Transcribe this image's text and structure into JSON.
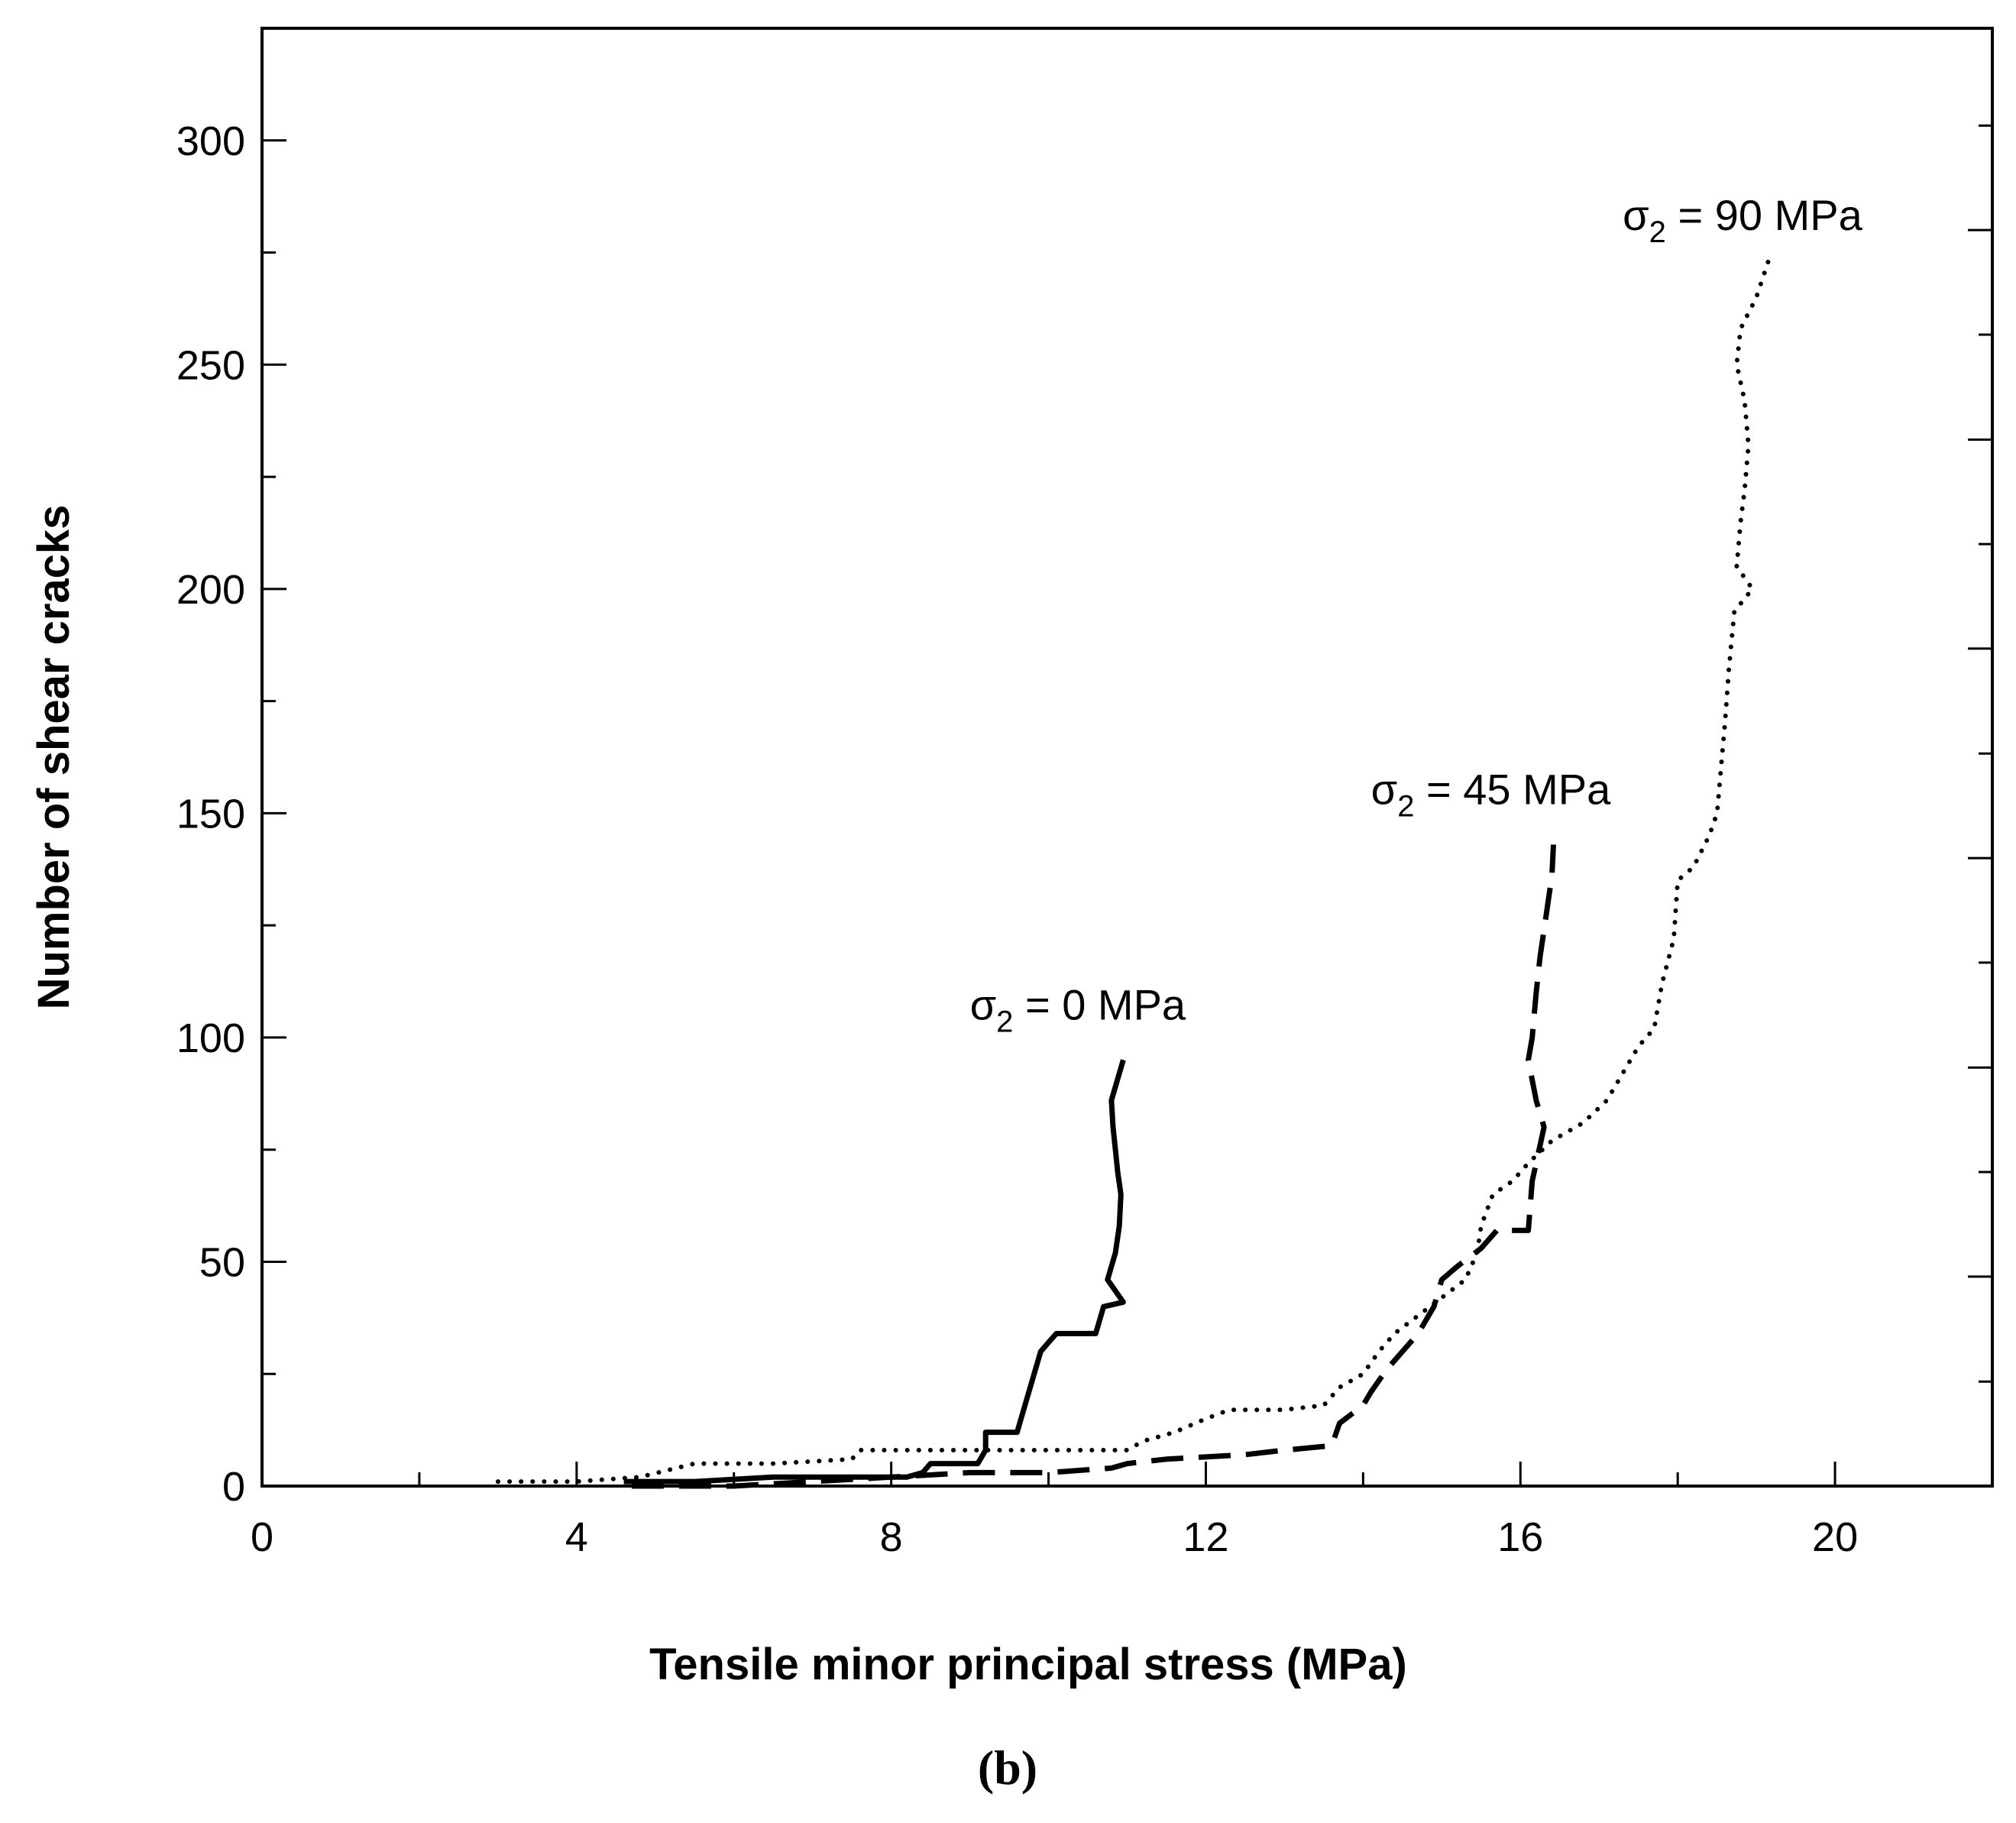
{
  "chart_data": {
    "type": "line",
    "xlabel": "Tensile minor principal stress (MPa)",
    "ylabel": "Number of shear cracks",
    "xlim": [
      0,
      22
    ],
    "ylim": [
      0,
      325
    ],
    "x_ticks": [
      0,
      4,
      8,
      12,
      16,
      20
    ],
    "x_minor_ticks": [
      2,
      6,
      10,
      14,
      18
    ],
    "y_ticks": [
      0,
      50,
      100,
      150,
      200,
      250,
      300
    ],
    "y_minor_ticks": [
      25,
      75,
      125,
      175,
      225,
      275
    ],
    "right_ticks": [
      0,
      23.3,
      46.7,
      70,
      93.3,
      116.7,
      140,
      163.3,
      186.7,
      210,
      233.3,
      256.7,
      280,
      303.3
    ],
    "grid": false,
    "caption": "(b)",
    "series": [
      {
        "name": "σ2 = 0 MPa",
        "style": "solid",
        "label": {
          "symbol": "σ",
          "sub": "2",
          "rest": " = 0 MPa"
        },
        "label_anchor": {
          "x": 9.0,
          "y": 104
        },
        "points": [
          [
            4.6,
            1
          ],
          [
            5.5,
            1
          ],
          [
            6.5,
            2
          ],
          [
            7.5,
            2
          ],
          [
            8.2,
            2
          ],
          [
            8.4,
            3
          ],
          [
            8.5,
            5
          ],
          [
            9.1,
            5
          ],
          [
            9.2,
            8
          ],
          [
            9.2,
            12
          ],
          [
            9.6,
            12
          ],
          [
            9.7,
            18
          ],
          [
            9.8,
            24
          ],
          [
            9.9,
            30
          ],
          [
            10.0,
            32
          ],
          [
            10.1,
            34
          ],
          [
            10.6,
            34
          ],
          [
            10.65,
            37
          ],
          [
            10.7,
            40
          ],
          [
            10.95,
            41
          ],
          [
            10.75,
            46
          ],
          [
            10.85,
            52
          ],
          [
            10.9,
            58
          ],
          [
            10.92,
            65
          ],
          [
            10.88,
            70
          ],
          [
            10.85,
            75
          ],
          [
            10.82,
            80
          ],
          [
            10.8,
            86
          ],
          [
            10.9,
            92
          ],
          [
            10.95,
            95
          ]
        ]
      },
      {
        "name": "σ2 = 45 MPa",
        "style": "dashed",
        "label": {
          "symbol": "σ",
          "sub": "2",
          "rest": " = 45 MPa"
        },
        "label_anchor": {
          "x": 14.1,
          "y": 152
        },
        "points": [
          [
            4.7,
            0
          ],
          [
            6.0,
            0
          ],
          [
            7.0,
            1
          ],
          [
            8.0,
            2
          ],
          [
            9.0,
            3
          ],
          [
            10.0,
            3
          ],
          [
            10.8,
            4
          ],
          [
            11.0,
            5
          ],
          [
            11.5,
            6
          ],
          [
            12.5,
            7
          ],
          [
            13.0,
            8
          ],
          [
            13.6,
            9
          ],
          [
            13.7,
            14
          ],
          [
            14.0,
            18
          ],
          [
            14.1,
            21
          ],
          [
            14.3,
            26
          ],
          [
            14.5,
            30
          ],
          [
            14.7,
            34
          ],
          [
            14.9,
            40
          ],
          [
            15.0,
            46
          ],
          [
            15.2,
            49
          ],
          [
            15.5,
            53
          ],
          [
            15.7,
            57
          ],
          [
            16.1,
            57
          ],
          [
            16.15,
            68
          ],
          [
            16.2,
            72
          ],
          [
            16.3,
            80
          ],
          [
            16.2,
            86
          ],
          [
            16.1,
            95
          ],
          [
            16.15,
            100
          ],
          [
            16.2,
            110
          ],
          [
            16.25,
            118
          ],
          [
            16.3,
            124
          ],
          [
            16.35,
            130
          ],
          [
            16.4,
            136
          ],
          [
            16.42,
            143
          ]
        ]
      },
      {
        "name": "σ2 = 90 MPa",
        "style": "dotted",
        "label": {
          "symbol": "σ",
          "sub": "2",
          "rest": " = 90 MPa"
        },
        "label_anchor": {
          "x": 17.3,
          "y": 280
        },
        "points": [
          [
            3.0,
            1
          ],
          [
            4.0,
            1
          ],
          [
            4.8,
            2
          ],
          [
            5.5,
            5
          ],
          [
            6.5,
            5
          ],
          [
            7.5,
            6
          ],
          [
            7.6,
            8
          ],
          [
            9.0,
            8
          ],
          [
            11.0,
            8
          ],
          [
            11.2,
            10
          ],
          [
            11.6,
            12
          ],
          [
            12.0,
            15
          ],
          [
            12.3,
            17
          ],
          [
            13.0,
            17
          ],
          [
            13.5,
            18
          ],
          [
            13.7,
            22
          ],
          [
            14.0,
            25
          ],
          [
            14.2,
            30
          ],
          [
            14.4,
            34
          ],
          [
            14.7,
            38
          ],
          [
            15.0,
            42
          ],
          [
            15.3,
            46
          ],
          [
            15.45,
            52
          ],
          [
            15.5,
            58
          ],
          [
            15.65,
            65
          ],
          [
            15.9,
            68
          ],
          [
            16.1,
            72
          ],
          [
            16.4,
            77
          ],
          [
            16.8,
            81
          ],
          [
            17.1,
            86
          ],
          [
            17.3,
            92
          ],
          [
            17.5,
            98
          ],
          [
            17.7,
            102
          ],
          [
            17.8,
            112
          ],
          [
            17.95,
            122
          ],
          [
            18.0,
            135
          ],
          [
            18.2,
            138
          ],
          [
            18.4,
            145
          ],
          [
            18.5,
            150
          ],
          [
            18.55,
            160
          ],
          [
            18.6,
            170
          ],
          [
            18.65,
            182
          ],
          [
            18.72,
            195
          ],
          [
            18.95,
            200
          ],
          [
            18.75,
            205
          ],
          [
            18.8,
            215
          ],
          [
            18.85,
            222
          ],
          [
            18.9,
            232
          ],
          [
            18.85,
            242
          ],
          [
            18.75,
            250
          ],
          [
            18.8,
            258
          ],
          [
            19.0,
            265
          ],
          [
            19.15,
            273
          ]
        ]
      }
    ]
  }
}
